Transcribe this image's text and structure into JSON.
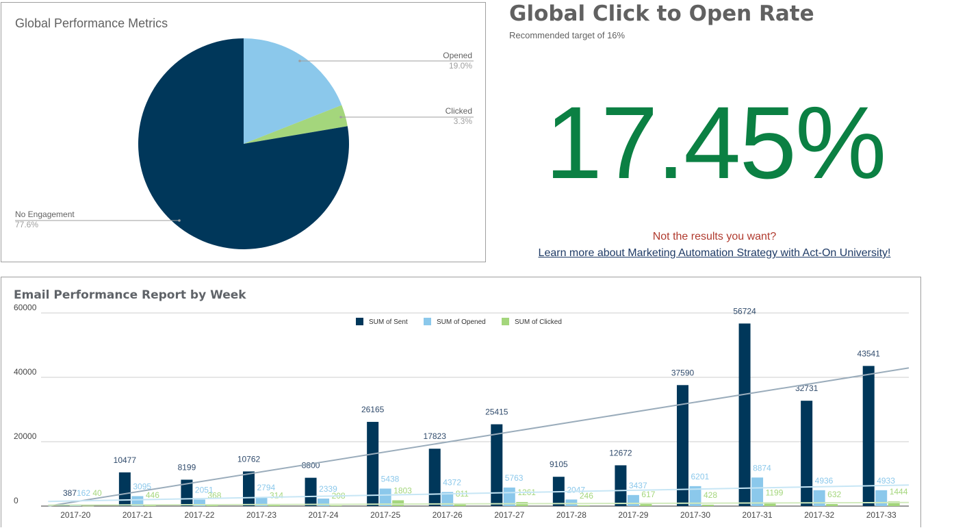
{
  "colors": {
    "sent": "#00375a",
    "opened": "#8bc8eb",
    "clicked": "#a4d67c",
    "kpi": "#0b8043",
    "warn": "#b03a2e",
    "link": "#1f3b66"
  },
  "kpi": {
    "title": "Global Click to Open Rate",
    "subtitle": "Recommended target of 16%",
    "value": "17.45%",
    "warning": "Not the results you want?",
    "link_text": "Learn more about Marketing Automation Strategy with Act-On University!"
  },
  "chart_data": [
    {
      "type": "pie",
      "title": "Global Performance Metrics",
      "slices": [
        {
          "label": "Opened",
          "value": 19.0,
          "display": "19.0%",
          "color": "#8bc8eb"
        },
        {
          "label": "Clicked",
          "value": 3.3,
          "display": "3.3%",
          "color": "#a4d67c"
        },
        {
          "label": "No Engagement",
          "value": 77.6,
          "display": "77.6%",
          "color": "#00375a"
        }
      ]
    },
    {
      "type": "bar",
      "title": "Email Performance Report by Week",
      "categories": [
        "2017-20",
        "2017-21",
        "2017-22",
        "2017-23",
        "2017-24",
        "2017-25",
        "2017-26",
        "2017-27",
        "2017-28",
        "2017-29",
        "2017-30",
        "2017-31",
        "2017-32",
        "2017-33"
      ],
      "series": [
        {
          "name": "SUM of Sent",
          "color": "#00375a",
          "values": [
            387,
            10477,
            8199,
            10762,
            8800,
            26165,
            17823,
            25415,
            9105,
            12672,
            37590,
            56724,
            32731,
            43541
          ]
        },
        {
          "name": "SUM of Opened",
          "color": "#8bc8eb",
          "values": [
            162,
            3095,
            2051,
            2794,
            2339,
            5438,
            4372,
            5763,
            2047,
            3437,
            6201,
            8874,
            4936,
            4933
          ]
        },
        {
          "name": "SUM of Clicked",
          "color": "#a4d67c",
          "values": [
            40,
            446,
            368,
            314,
            208,
            1803,
            811,
            1261,
            246,
            617,
            428,
            1199,
            632,
            1444
          ]
        }
      ],
      "yticks": [
        "0",
        "20000",
        "40000",
        "60000"
      ],
      "ylim": [
        0,
        60000
      ],
      "trendlines": true,
      "legend": "top-center",
      "grid": true
    }
  ]
}
